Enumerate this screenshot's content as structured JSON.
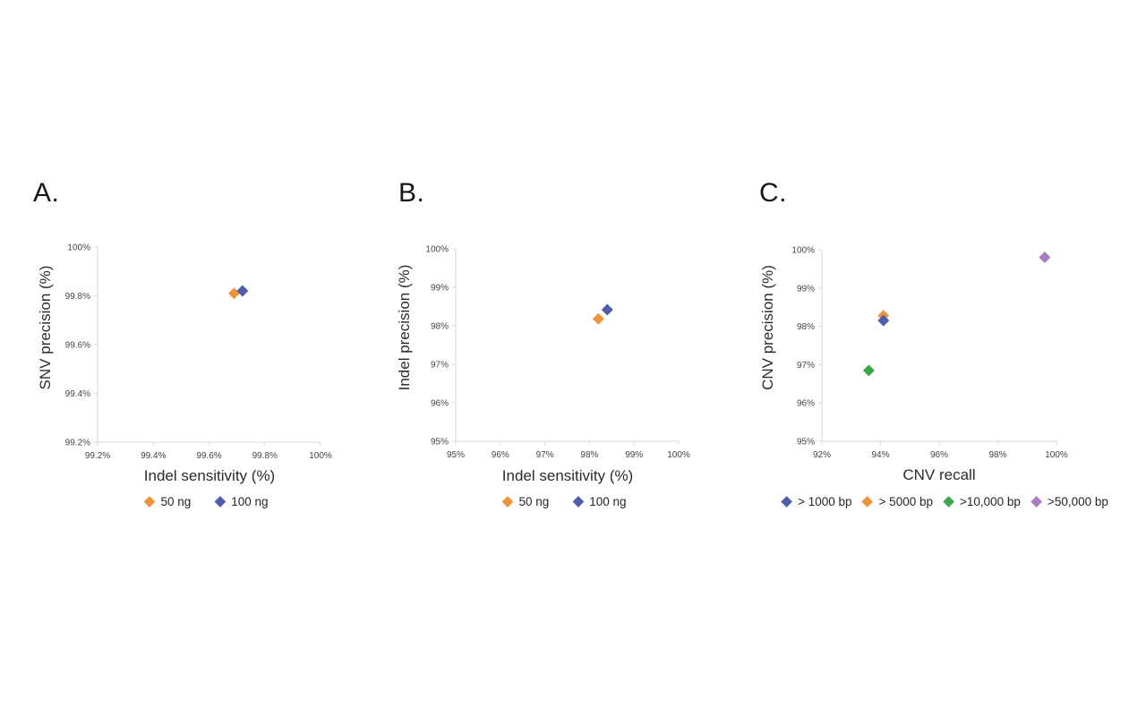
{
  "figure": {
    "background": "#ffffff",
    "axis_color": "#d9d9d9",
    "tick_text_color": "#454545",
    "title_text_color": "#2b2b2b"
  },
  "chart_data": [
    {
      "type": "scatter",
      "panel_label": "A.",
      "xlabel": "Indel sensitivity (%)",
      "ylabel": "SNV precision (%)",
      "xlim": [
        99.2,
        100
      ],
      "ylim": [
        99.2,
        100
      ],
      "xticks": [
        99.2,
        99.4,
        99.6,
        99.8,
        100
      ],
      "xtick_labels": [
        "99.2%",
        "99.4%",
        "99.6%",
        "99.8%",
        "100%"
      ],
      "yticks": [
        99.2,
        99.4,
        99.6,
        99.8,
        100
      ],
      "ytick_labels": [
        "99.2%",
        "99.4%",
        "99.6%",
        "99.8%",
        "100%"
      ],
      "grid": false,
      "legend_position": "bottom",
      "series": [
        {
          "name": "50 ng",
          "marker": "diamond",
          "color": "#F0943C",
          "points": [
            {
              "x": 99.69,
              "y": 99.81
            }
          ]
        },
        {
          "name": "100 ng",
          "marker": "diamond",
          "color": "#4E5EA9",
          "points": [
            {
              "x": 99.72,
              "y": 99.82
            }
          ]
        }
      ],
      "draw_order": [
        0,
        1
      ]
    },
    {
      "type": "scatter",
      "panel_label": "B.",
      "xlabel": "Indel sensitivity (%)",
      "ylabel": "Indel precision (%)",
      "xlim": [
        95,
        100
      ],
      "ylim": [
        95,
        100
      ],
      "xticks": [
        95,
        96,
        97,
        98,
        99,
        100
      ],
      "xtick_labels": [
        "95%",
        "96%",
        "97%",
        "98%",
        "99%",
        "100%"
      ],
      "yticks": [
        95,
        96,
        97,
        98,
        99,
        100
      ],
      "ytick_labels": [
        "95%",
        "96%",
        "97%",
        "98%",
        "99%",
        "100%"
      ],
      "grid": false,
      "legend_position": "bottom",
      "series": [
        {
          "name": "50 ng",
          "marker": "diamond",
          "color": "#F0943C",
          "points": [
            {
              "x": 98.2,
              "y": 98.18
            }
          ]
        },
        {
          "name": "100 ng",
          "marker": "diamond",
          "color": "#4E5EA9",
          "points": [
            {
              "x": 98.4,
              "y": 98.42
            }
          ]
        }
      ],
      "draw_order": [
        0,
        1
      ]
    },
    {
      "type": "scatter",
      "panel_label": "C.",
      "xlabel": "CNV recall",
      "ylabel": "CNV precision (%)",
      "xlim": [
        92,
        100
      ],
      "ylim": [
        95,
        100
      ],
      "xticks": [
        92,
        94,
        96,
        98,
        100
      ],
      "xtick_labels": [
        "92%",
        "94%",
        "96%",
        "98%",
        "100%"
      ],
      "yticks": [
        95,
        96,
        97,
        98,
        99,
        100
      ],
      "ytick_labels": [
        "95%",
        "96%",
        "97%",
        "98%",
        "99%",
        "100%"
      ],
      "grid": false,
      "legend_position": "bottom",
      "series": [
        {
          "name": "> 1000 bp",
          "marker": "diamond",
          "color": "#4E5EA9",
          "points": [
            {
              "x": 94.1,
              "y": 98.15
            }
          ]
        },
        {
          "name": "> 5000 bp",
          "marker": "diamond",
          "color": "#F0943C",
          "points": [
            {
              "x": 94.1,
              "y": 98.28
            }
          ]
        },
        {
          "name": ">10,000 bp",
          "marker": "diamond",
          "color": "#3BA64A",
          "points": [
            {
              "x": 93.6,
              "y": 96.85
            }
          ]
        },
        {
          "name": ">50,000 bp",
          "marker": "diamond",
          "color": "#A97CC1",
          "points": [
            {
              "x": 99.6,
              "y": 99.8
            }
          ]
        }
      ],
      "draw_order": [
        1,
        0,
        2,
        3
      ]
    }
  ]
}
